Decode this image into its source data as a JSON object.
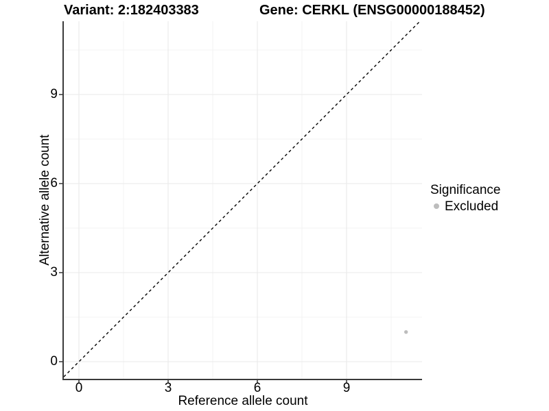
{
  "chart_data": {
    "type": "scatter",
    "title_left": "Variant: 2:182403383",
    "title_right": "Gene: CERKL (ENSG00000188452)",
    "xlabel": "Reference allele count",
    "ylabel": "Alternative allele count",
    "xlim": [
      -0.51,
      11.54
    ],
    "ylim": [
      -0.58,
      11.47
    ],
    "x_ticks": [
      0,
      3,
      6,
      9
    ],
    "y_ticks": [
      0,
      3,
      6,
      9
    ],
    "minor_ticks": [
      1.5,
      4.5,
      7.5,
      10.5
    ],
    "grid": true,
    "reference_line": {
      "type": "identity",
      "slope": 1,
      "intercept": 0,
      "style": "dashed"
    },
    "series": [
      {
        "name": "Excluded",
        "color": "#bdbdbd",
        "points": [
          {
            "x": 11,
            "y": 1
          }
        ]
      }
    ],
    "legend": {
      "title": "Significance",
      "position": "right",
      "items": [
        {
          "label": "Excluded",
          "color": "#bdbdbd"
        }
      ]
    },
    "colors": {
      "grid_major": "#e9e9e9",
      "grid_minor": "#f3f3f3",
      "axis": "#3a3a3a",
      "tick": "#333333",
      "reference_line": "#000000",
      "text": "#000000"
    }
  }
}
